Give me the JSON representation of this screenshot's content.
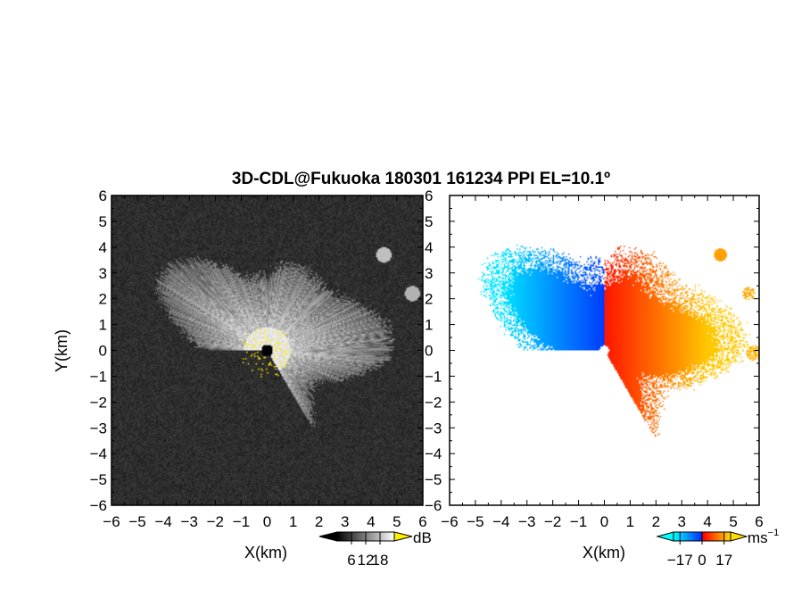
{
  "title": "3D-CDL@Fukuoka 180301 161234 PPI EL=10.1º",
  "colors": {
    "frame": "#000000",
    "highlight": "#ffee00",
    "radar": "#000000"
  },
  "chart_data": [
    {
      "type": "heatmap",
      "variable": "intensity",
      "xlabel": "X(km)",
      "ylabel": "Y(km)",
      "xlim": [
        -6,
        6
      ],
      "ylim": [
        -6,
        6
      ],
      "x_ticks": [
        "−6",
        "−5",
        "−4",
        "−3",
        "−2",
        "−1",
        "0",
        "1",
        "2",
        "3",
        "4",
        "5",
        "6"
      ],
      "y_ticks": [
        "6",
        "5",
        "4",
        "3",
        "2",
        "1",
        "0",
        "−1",
        "−2",
        "−3",
        "−4",
        "−5",
        "−6"
      ],
      "colorbar": {
        "unit": "dB",
        "ticks": [
          "6",
          "12",
          "18"
        ],
        "range": [
          0,
          24
        ],
        "palette": [
          "#000000",
          "#ffffff"
        ]
      }
    },
    {
      "type": "heatmap",
      "variable": "doppler velocity",
      "xlabel": "X(km)",
      "xlim": [
        -6,
        6
      ],
      "ylim": [
        -6,
        6
      ],
      "x_ticks": [
        "−6",
        "−5",
        "−4",
        "−3",
        "−2",
        "−1",
        "0",
        "1",
        "2",
        "3",
        "4",
        "5",
        "6"
      ],
      "y_ticks": [
        "6",
        "5",
        "4",
        "3",
        "2",
        "1",
        "0",
        "−1",
        "−2",
        "−3",
        "−4",
        "−5",
        "−6"
      ],
      "colorbar": {
        "unit": "ms",
        "unit_exponent": "−1",
        "ticks": [
          "−17",
          "0",
          "17"
        ],
        "range": [
          -22,
          22
        ],
        "palette": [
          "#00ffff",
          "#0033ff",
          "#ff0000",
          "#ffdd00"
        ]
      }
    }
  ]
}
